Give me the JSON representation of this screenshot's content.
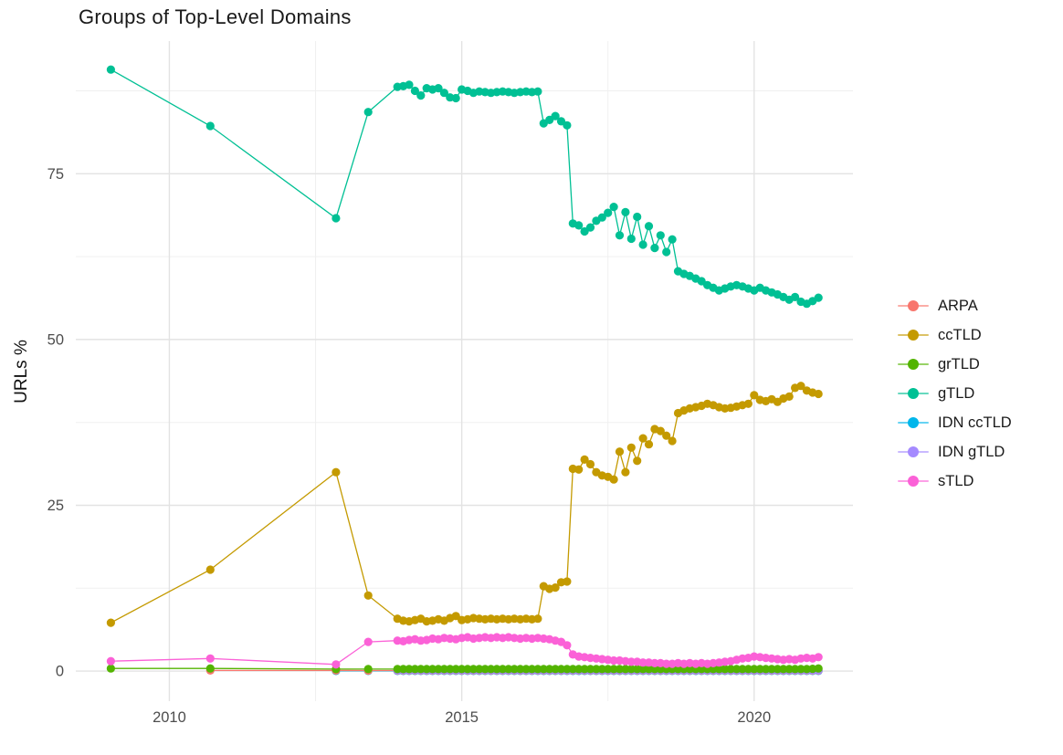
{
  "header": {
    "title": "Groups of Top-Level Domains"
  },
  "chart_data": {
    "type": "line",
    "title": "Groups of Top-Level Domains",
    "xlabel": "",
    "ylabel": "URLs %",
    "grid": "on",
    "legend_position": "right",
    "x_ticks": [
      2010,
      2015,
      2020
    ],
    "x_minor": [
      2012.5,
      2017.5
    ],
    "y_ticks": [
      0,
      25,
      50,
      75
    ],
    "y_minor": [
      12.5,
      37.5,
      62.5,
      87.5
    ],
    "xlim": [
      2008.4,
      2021.69
    ],
    "ylim": [
      -4.53,
      95.0
    ],
    "legend_order": [
      "ARPA",
      "ccTLD",
      "grTLD",
      "gTLD",
      "IDN ccTLD",
      "IDN gTLD",
      "sTLD"
    ],
    "x": [
      2009.0,
      2010.7,
      2012.85,
      2013.4,
      2013.9,
      2014.0,
      2014.1,
      2014.2,
      2014.3,
      2014.4,
      2014.5,
      2014.6,
      2014.7,
      2014.8,
      2014.9,
      2015.0,
      2015.1,
      2015.2,
      2015.3,
      2015.4,
      2015.5,
      2015.6,
      2015.7,
      2015.8,
      2015.9,
      2016.0,
      2016.1,
      2016.2,
      2016.3,
      2016.4,
      2016.5,
      2016.6,
      2016.7,
      2016.8,
      2016.9,
      2017.0,
      2017.1,
      2017.2,
      2017.3,
      2017.4,
      2017.5,
      2017.6,
      2017.7,
      2017.8,
      2017.9,
      2018.0,
      2018.1,
      2018.2,
      2018.3,
      2018.4,
      2018.5,
      2018.6,
      2018.7,
      2018.8,
      2018.9,
      2019.0,
      2019.1,
      2019.2,
      2019.3,
      2019.4,
      2019.5,
      2019.6,
      2019.7,
      2019.8,
      2019.9,
      2020.0,
      2020.1,
      2020.2,
      2020.3,
      2020.4,
      2020.5,
      2020.6,
      2020.7,
      2020.8,
      2020.9,
      2021.0,
      2021.1
    ],
    "series": [
      {
        "name": "IDN ccTLD",
        "color": "#00B6EB",
        "values": [
          null,
          null,
          0.02,
          0.02,
          0.02,
          0.02,
          0.02,
          0.02,
          0.02,
          0.02,
          0.02,
          0.02,
          0.02,
          0.02,
          0.02,
          0.02,
          0.02,
          0.02,
          0.02,
          0.02,
          0.02,
          0.02,
          0.02,
          0.02,
          0.02,
          0.02,
          0.02,
          0.02,
          0.02,
          0.02,
          0.02,
          0.02,
          0.02,
          0.02,
          0.02,
          0.02,
          0.02,
          0.02,
          0.02,
          0.02,
          0.02,
          0.02,
          0.02,
          0.02,
          0.02,
          0.02,
          0.02,
          0.02,
          0.02,
          0.02,
          0.02,
          0.02,
          0.02,
          0.02,
          0.02,
          0.02,
          0.02,
          0.02,
          0.02,
          0.02,
          0.02,
          0.02,
          0.02,
          0.02,
          0.02,
          0.02,
          0.02,
          0.02,
          0.02,
          0.02,
          0.02,
          0.02,
          0.02,
          0.02,
          0.02,
          0.02,
          0.02
        ]
      },
      {
        "name": "ARPA",
        "color": "#F8766D",
        "values": [
          null,
          0.1,
          0.1,
          0.08,
          0.08,
          0.08,
          0.08,
          0.08,
          0.08,
          0.08,
          0.08,
          0.08,
          0.08,
          0.08,
          0.08,
          0.08,
          0.08,
          0.08,
          0.08,
          0.08,
          0.08,
          0.08,
          0.08,
          0.08,
          0.08,
          0.08,
          0.08,
          0.08,
          0.08,
          0.08,
          0.08,
          0.08,
          0.08,
          0.08,
          0.08,
          0.08,
          0.08,
          0.08,
          0.08,
          0.08,
          0.08,
          0.08,
          0.08,
          0.08,
          0.08,
          0.08,
          0.08,
          0.08,
          0.08,
          0.08,
          0.08,
          0.08,
          0.08,
          0.08,
          0.08,
          0.08,
          0.08,
          0.08,
          0.08,
          0.08,
          0.08,
          0.08,
          0.08,
          0.08,
          0.08,
          0.08,
          0.08,
          0.08,
          0.08,
          0.08,
          0.08,
          0.08,
          0.08,
          0.08,
          0.08,
          0.08,
          0.08
        ]
      },
      {
        "name": "IDN gTLD",
        "color": "#A58AFF",
        "values": [
          null,
          null,
          null,
          null,
          0.12,
          0.12,
          0.12,
          0.12,
          0.12,
          0.12,
          0.12,
          0.12,
          0.12,
          0.12,
          0.12,
          0.12,
          0.12,
          0.12,
          0.12,
          0.12,
          0.12,
          0.12,
          0.12,
          0.12,
          0.12,
          0.12,
          0.12,
          0.12,
          0.12,
          0.12,
          0.12,
          0.12,
          0.12,
          0.12,
          0.12,
          0.12,
          0.12,
          0.12,
          0.12,
          0.12,
          0.12,
          0.12,
          0.12,
          0.12,
          0.12,
          0.12,
          0.12,
          0.12,
          0.12,
          0.12,
          0.12,
          0.12,
          0.12,
          0.12,
          0.12,
          0.12,
          0.12,
          0.12,
          0.12,
          0.12,
          0.12,
          0.12,
          0.12,
          0.12,
          0.12,
          0.12,
          0.12,
          0.12,
          0.12,
          0.12,
          0.12,
          0.12,
          0.12,
          0.12,
          0.12,
          0.12,
          0.12
        ]
      },
      {
        "name": "grTLD",
        "color": "#53B400",
        "values": [
          0.4,
          0.4,
          0.3,
          0.3,
          0.3,
          0.3,
          0.3,
          0.3,
          0.3,
          0.3,
          0.3,
          0.3,
          0.3,
          0.3,
          0.3,
          0.3,
          0.3,
          0.3,
          0.3,
          0.3,
          0.3,
          0.3,
          0.3,
          0.3,
          0.3,
          0.3,
          0.3,
          0.3,
          0.3,
          0.3,
          0.3,
          0.3,
          0.3,
          0.3,
          0.3,
          0.3,
          0.3,
          0.3,
          0.3,
          0.3,
          0.3,
          0.3,
          0.3,
          0.3,
          0.3,
          0.3,
          0.3,
          0.3,
          0.3,
          0.3,
          0.3,
          0.3,
          0.3,
          0.3,
          0.3,
          0.3,
          0.3,
          0.3,
          0.3,
          0.3,
          0.3,
          0.3,
          0.3,
          0.3,
          0.3,
          0.3,
          0.3,
          0.3,
          0.3,
          0.3,
          0.3,
          0.3,
          0.3,
          0.3,
          0.3,
          0.35,
          0.4
        ]
      },
      {
        "name": "ccTLD",
        "color": "#C49A00",
        "values": [
          7.3,
          15.3,
          30.0,
          11.4,
          7.9,
          7.6,
          7.5,
          7.7,
          7.9,
          7.5,
          7.6,
          7.8,
          7.6,
          8.0,
          8.3,
          7.7,
          7.8,
          8.0,
          7.9,
          7.8,
          7.9,
          7.8,
          7.9,
          7.8,
          7.9,
          7.8,
          7.9,
          7.8,
          7.9,
          12.8,
          12.4,
          12.6,
          13.4,
          13.5,
          30.5,
          30.4,
          31.9,
          31.2,
          30.0,
          29.5,
          29.3,
          28.9,
          33.1,
          30.0,
          33.7,
          31.7,
          35.1,
          34.2,
          36.5,
          36.2,
          35.5,
          34.7,
          38.9,
          39.3,
          39.6,
          39.8,
          40.0,
          40.3,
          40.1,
          39.8,
          39.6,
          39.7,
          39.9,
          40.1,
          40.3,
          41.6,
          40.9,
          40.7,
          41.0,
          40.6,
          41.1,
          41.4,
          42.7,
          43.0,
          42.3,
          42.0,
          41.8
        ]
      },
      {
        "name": "gTLD",
        "color": "#00C094",
        "values": [
          90.7,
          82.2,
          68.3,
          84.3,
          88.1,
          88.2,
          88.4,
          87.5,
          86.8,
          87.9,
          87.7,
          87.9,
          87.2,
          86.5,
          86.4,
          87.7,
          87.5,
          87.2,
          87.4,
          87.3,
          87.2,
          87.3,
          87.4,
          87.3,
          87.2,
          87.3,
          87.4,
          87.3,
          87.4,
          82.6,
          83.1,
          83.7,
          82.9,
          82.3,
          67.5,
          67.2,
          66.3,
          66.9,
          67.9,
          68.4,
          69.1,
          70.0,
          65.7,
          69.2,
          65.2,
          68.5,
          64.3,
          67.1,
          63.8,
          65.7,
          63.2,
          65.1,
          60.3,
          59.9,
          59.6,
          59.2,
          58.8,
          58.2,
          57.8,
          57.4,
          57.7,
          58.0,
          58.2,
          58.0,
          57.7,
          57.4,
          57.8,
          57.4,
          57.1,
          56.8,
          56.4,
          56.0,
          56.4,
          55.7,
          55.4,
          55.8,
          56.3
        ]
      },
      {
        "name": "sTLD",
        "color": "#FB61D7",
        "values": [
          1.5,
          1.9,
          1.0,
          4.4,
          4.6,
          4.5,
          4.7,
          4.8,
          4.6,
          4.7,
          4.9,
          4.8,
          5.0,
          4.9,
          4.8,
          5.0,
          5.1,
          4.9,
          5.0,
          5.1,
          5.0,
          5.1,
          5.0,
          5.1,
          5.0,
          4.9,
          5.0,
          4.9,
          5.0,
          4.9,
          4.8,
          4.6,
          4.4,
          3.9,
          2.5,
          2.2,
          2.1,
          2.0,
          1.9,
          1.8,
          1.7,
          1.6,
          1.6,
          1.5,
          1.4,
          1.4,
          1.3,
          1.3,
          1.2,
          1.2,
          1.1,
          1.1,
          1.2,
          1.1,
          1.2,
          1.1,
          1.2,
          1.1,
          1.2,
          1.3,
          1.4,
          1.5,
          1.7,
          1.9,
          2.0,
          2.2,
          2.1,
          2.0,
          1.9,
          1.8,
          1.7,
          1.8,
          1.7,
          1.9,
          2.0,
          1.9,
          2.1
        ]
      }
    ],
    "colors": {
      "grid_major": "#e3e3e3",
      "grid_minor": "#f0f0f0",
      "tick_label": "#4d4d4d",
      "background": "#ffffff"
    }
  }
}
